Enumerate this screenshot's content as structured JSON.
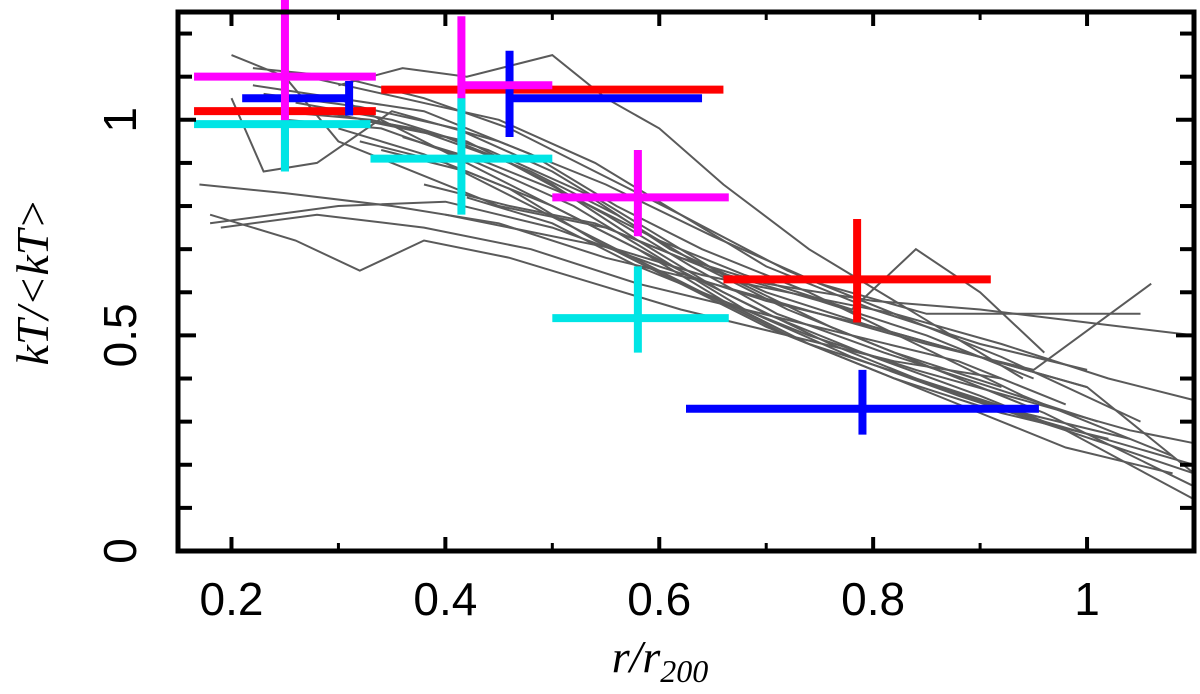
{
  "chart_data": {
    "type": "scatter",
    "title": "",
    "xlabel": "r/r",
    "xlabel_sub": "200",
    "ylabel": "kT/<kT>",
    "xlim": [
      0.15,
      1.1
    ],
    "ylim": [
      0,
      1.25
    ],
    "xticks": [
      0.2,
      0.4,
      0.6,
      0.8,
      1.0
    ],
    "xtick_labels": [
      "0.2",
      "0.4",
      "0.6",
      "0.8",
      "1"
    ],
    "yticks": [
      0,
      0.5,
      1.0
    ],
    "ytick_labels": [
      "0",
      "0.5",
      "1"
    ],
    "grid": false,
    "legend": "none",
    "background_profiles": {
      "color": "#5a5a5a",
      "lines": [
        [
          [
            0.17,
            0.85
          ],
          [
            0.25,
            0.83
          ],
          [
            0.35,
            0.8
          ],
          [
            0.45,
            0.76
          ],
          [
            0.55,
            0.68
          ],
          [
            0.65,
            0.62
          ],
          [
            0.75,
            0.55
          ],
          [
            0.85,
            0.48
          ],
          [
            0.95,
            0.42
          ],
          [
            1.06,
            0.62
          ]
        ],
        [
          [
            0.18,
            0.76
          ],
          [
            0.3,
            0.8
          ],
          [
            0.4,
            0.81
          ],
          [
            0.5,
            0.75
          ],
          [
            0.6,
            0.66
          ],
          [
            0.7,
            0.58
          ],
          [
            0.8,
            0.52
          ],
          [
            0.9,
            0.45
          ],
          [
            1.0,
            0.38
          ],
          [
            1.1,
            0.18
          ]
        ],
        [
          [
            0.19,
            0.75
          ],
          [
            0.28,
            0.78
          ],
          [
            0.38,
            0.75
          ],
          [
            0.48,
            0.7
          ],
          [
            0.58,
            0.62
          ],
          [
            0.68,
            0.56
          ],
          [
            0.78,
            0.5
          ],
          [
            0.88,
            0.44
          ],
          [
            0.98,
            0.34
          ]
        ],
        [
          [
            0.2,
            1.15
          ],
          [
            0.25,
            1.1
          ],
          [
            0.3,
            0.95
          ],
          [
            0.35,
            0.9
          ],
          [
            0.45,
            0.8
          ],
          [
            0.55,
            0.75
          ],
          [
            0.65,
            0.65
          ],
          [
            0.75,
            0.58
          ],
          [
            0.85,
            0.5
          ],
          [
            0.95,
            0.4
          ]
        ],
        [
          [
            0.2,
            1.05
          ],
          [
            0.23,
            0.88
          ],
          [
            0.28,
            0.9
          ],
          [
            0.35,
            1.02
          ],
          [
            0.45,
            0.95
          ],
          [
            0.55,
            0.85
          ],
          [
            0.65,
            0.73
          ],
          [
            0.75,
            0.62
          ],
          [
            0.85,
            0.55
          ],
          [
            1.05,
            0.55
          ]
        ],
        [
          [
            0.22,
            1.12
          ],
          [
            0.3,
            1.1
          ],
          [
            0.38,
            1.05
          ],
          [
            0.46,
            0.98
          ],
          [
            0.54,
            0.88
          ],
          [
            0.62,
            0.78
          ],
          [
            0.72,
            0.65
          ],
          [
            0.82,
            0.55
          ],
          [
            0.92,
            0.45
          ],
          [
            1.05,
            0.3
          ]
        ],
        [
          [
            0.22,
            1.08
          ],
          [
            0.3,
            1.05
          ],
          [
            0.38,
            1.02
          ],
          [
            0.48,
            0.92
          ],
          [
            0.56,
            0.8
          ],
          [
            0.64,
            0.7
          ],
          [
            0.74,
            0.6
          ],
          [
            0.84,
            0.48
          ],
          [
            0.94,
            0.36
          ],
          [
            1.08,
            0.22
          ]
        ],
        [
          [
            0.23,
            1.06
          ],
          [
            0.32,
            1.03
          ],
          [
            0.41,
            0.98
          ],
          [
            0.5,
            0.88
          ],
          [
            0.58,
            0.76
          ],
          [
            0.66,
            0.64
          ],
          [
            0.76,
            0.52
          ],
          [
            0.86,
            0.42
          ],
          [
            0.96,
            0.32
          ],
          [
            1.1,
            0.15
          ]
        ],
        [
          [
            0.24,
            1.02
          ],
          [
            0.33,
            1.0
          ],
          [
            0.42,
            0.95
          ],
          [
            0.5,
            0.85
          ],
          [
            0.58,
            0.72
          ],
          [
            0.66,
            0.6
          ],
          [
            0.76,
            0.48
          ],
          [
            0.86,
            0.38
          ],
          [
            0.96,
            0.3
          ],
          [
            1.1,
            0.2
          ]
        ],
        [
          [
            0.25,
            1.0
          ],
          [
            0.34,
            0.98
          ],
          [
            0.43,
            0.9
          ],
          [
            0.52,
            0.8
          ],
          [
            0.6,
            0.68
          ],
          [
            0.68,
            0.56
          ],
          [
            0.78,
            0.45
          ],
          [
            0.88,
            0.36
          ],
          [
            0.98,
            0.28
          ],
          [
            1.1,
            0.12
          ]
        ],
        [
          [
            0.26,
            1.04
          ],
          [
            0.35,
            1.0
          ],
          [
            0.44,
            0.93
          ],
          [
            0.53,
            0.83
          ],
          [
            0.61,
            0.7
          ],
          [
            0.7,
            0.6
          ],
          [
            0.8,
            0.52
          ],
          [
            0.9,
            0.45
          ],
          [
            1.0,
            0.38
          ]
        ],
        [
          [
            0.27,
            1.1
          ],
          [
            0.36,
            1.05
          ],
          [
            0.45,
            1.0
          ],
          [
            0.54,
            0.9
          ],
          [
            0.62,
            0.78
          ],
          [
            0.7,
            0.66
          ],
          [
            0.8,
            0.56
          ],
          [
            0.9,
            0.48
          ],
          [
            1.0,
            0.42
          ]
        ],
        [
          [
            0.28,
            1.02
          ],
          [
            0.37,
            0.98
          ],
          [
            0.46,
            0.9
          ],
          [
            0.55,
            0.78
          ],
          [
            0.63,
            0.66
          ],
          [
            0.71,
            0.55
          ],
          [
            0.81,
            0.46
          ],
          [
            0.91,
            0.38
          ],
          [
            1.01,
            0.3
          ]
        ],
        [
          [
            0.3,
            1.05
          ],
          [
            0.38,
            0.95
          ],
          [
            0.46,
            0.85
          ],
          [
            0.54,
            0.75
          ],
          [
            0.62,
            0.65
          ],
          [
            0.7,
            0.55
          ],
          [
            0.8,
            0.45
          ],
          [
            0.9,
            0.36
          ],
          [
            0.98,
            0.28
          ],
          [
            1.1,
            0.18
          ]
        ],
        [
          [
            0.3,
            0.98
          ],
          [
            0.38,
            0.92
          ],
          [
            0.46,
            0.84
          ],
          [
            0.54,
            0.72
          ],
          [
            0.62,
            0.62
          ],
          [
            0.7,
            0.52
          ],
          [
            0.8,
            0.42
          ],
          [
            0.9,
            0.32
          ],
          [
            0.98,
            0.24
          ],
          [
            1.08,
            0.18
          ]
        ],
        [
          [
            0.32,
            0.95
          ],
          [
            0.4,
            0.9
          ],
          [
            0.48,
            0.8
          ],
          [
            0.56,
            0.7
          ],
          [
            0.64,
            0.6
          ],
          [
            0.72,
            0.5
          ],
          [
            0.82,
            0.4
          ],
          [
            0.92,
            0.32
          ],
          [
            1.02,
            0.26
          ]
        ],
        [
          [
            0.32,
            1.0
          ],
          [
            0.4,
            0.96
          ],
          [
            0.48,
            0.88
          ],
          [
            0.56,
            0.78
          ],
          [
            0.64,
            0.66
          ],
          [
            0.72,
            0.56
          ],
          [
            0.82,
            0.46
          ],
          [
            0.92,
            0.38
          ]
        ],
        [
          [
            0.34,
            0.93
          ],
          [
            0.42,
            0.88
          ],
          [
            0.5,
            0.8
          ],
          [
            0.58,
            0.7
          ],
          [
            0.66,
            0.58
          ],
          [
            0.74,
            0.48
          ],
          [
            0.84,
            0.4
          ],
          [
            0.94,
            0.32
          ],
          [
            1.04,
            0.26
          ]
        ],
        [
          [
            0.18,
            0.78
          ],
          [
            0.26,
            0.72
          ],
          [
            0.32,
            0.65
          ],
          [
            0.38,
            0.72
          ],
          [
            0.46,
            0.68
          ],
          [
            0.54,
            0.62
          ],
          [
            0.62,
            0.56
          ],
          [
            0.72,
            0.5
          ],
          [
            0.82,
            0.44
          ],
          [
            0.92,
            0.4
          ]
        ],
        [
          [
            0.3,
            1.08
          ],
          [
            0.36,
            1.12
          ],
          [
            0.42,
            1.1
          ],
          [
            0.5,
            1.15
          ],
          [
            0.55,
            1.05
          ],
          [
            0.6,
            0.98
          ],
          [
            0.66,
            0.85
          ],
          [
            0.74,
            0.7
          ],
          [
            0.84,
            0.55
          ],
          [
            0.94,
            0.4
          ]
        ],
        [
          [
            0.36,
            0.96
          ],
          [
            0.44,
            0.9
          ],
          [
            0.52,
            0.82
          ],
          [
            0.6,
            0.72
          ],
          [
            0.68,
            0.64
          ],
          [
            0.78,
            0.56
          ],
          [
            0.84,
            0.7
          ],
          [
            0.9,
            0.6
          ],
          [
            0.96,
            0.46
          ]
        ],
        [
          [
            0.38,
            0.85
          ],
          [
            0.46,
            0.8
          ],
          [
            0.54,
            0.76
          ],
          [
            0.62,
            0.68
          ],
          [
            0.7,
            0.62
          ],
          [
            0.8,
            0.58
          ],
          [
            0.9,
            0.56
          ],
          [
            1.0,
            0.53
          ],
          [
            1.1,
            0.5
          ]
        ],
        [
          [
            0.4,
            0.78
          ],
          [
            0.48,
            0.74
          ],
          [
            0.56,
            0.7
          ],
          [
            0.64,
            0.64
          ],
          [
            0.72,
            0.6
          ],
          [
            0.82,
            0.55
          ],
          [
            0.92,
            0.48
          ],
          [
            1.02,
            0.4
          ],
          [
            1.1,
            0.35
          ]
        ],
        [
          [
            0.42,
            0.82
          ],
          [
            0.5,
            0.76
          ],
          [
            0.58,
            0.66
          ],
          [
            0.66,
            0.58
          ],
          [
            0.74,
            0.5
          ],
          [
            0.84,
            0.42
          ],
          [
            0.94,
            0.35
          ],
          [
            1.04,
            0.28
          ],
          [
            1.1,
            0.25
          ]
        ]
      ]
    },
    "series": [
      {
        "color": "#ff0000",
        "points": [
          {
            "x": 0.25,
            "y": 1.02,
            "xerr": [
              0.085,
              0.085
            ],
            "yerr": [
              0.0,
              0.0
            ]
          },
          {
            "x": 0.5,
            "y": 1.07,
            "xerr": [
              0.16,
              0.16
            ],
            "yerr": [
              0.0,
              0.0
            ]
          },
          {
            "x": 0.785,
            "y": 0.63,
            "xerr": [
              0.125,
              0.125
            ],
            "yerr": [
              0.1,
              0.14
            ]
          }
        ]
      },
      {
        "color": "#0000ff",
        "points": [
          {
            "x": 0.31,
            "y": 1.05,
            "xerr": [
              0.1,
              0.0
            ],
            "yerr": [
              0.04,
              0.04
            ]
          },
          {
            "x": 0.46,
            "y": 1.05,
            "xerr": [
              0.0,
              0.18
            ],
            "yerr": [
              0.09,
              0.11
            ]
          },
          {
            "x": 0.79,
            "y": 0.33,
            "xerr": [
              0.165,
              0.165
            ],
            "yerr": [
              0.06,
              0.09
            ]
          }
        ]
      },
      {
        "color": "#ff00ff",
        "points": [
          {
            "x": 0.25,
            "y": 1.1,
            "xerr": [
              0.085,
              0.085
            ],
            "yerr": [
              0.22,
              0.25
            ]
          },
          {
            "x": 0.415,
            "y": 1.08,
            "xerr": [
              0.0,
              0.085
            ],
            "yerr": [
              0.14,
              0.16
            ]
          },
          {
            "x": 0.58,
            "y": 0.82,
            "xerr": [
              0.08,
              0.085
            ],
            "yerr": [
              0.09,
              0.11
            ]
          }
        ]
      },
      {
        "color": "#00e5e5",
        "points": [
          {
            "x": 0.25,
            "y": 0.99,
            "xerr": [
              0.085,
              0.08
            ],
            "yerr": [
              0.11,
              0.0
            ]
          },
          {
            "x": 0.415,
            "y": 0.91,
            "xerr": [
              0.085,
              0.085
            ],
            "yerr": [
              0.13,
              0.14
            ]
          },
          {
            "x": 0.58,
            "y": 0.54,
            "xerr": [
              0.08,
              0.085
            ],
            "yerr": [
              0.08,
              0.12
            ]
          }
        ]
      }
    ]
  }
}
